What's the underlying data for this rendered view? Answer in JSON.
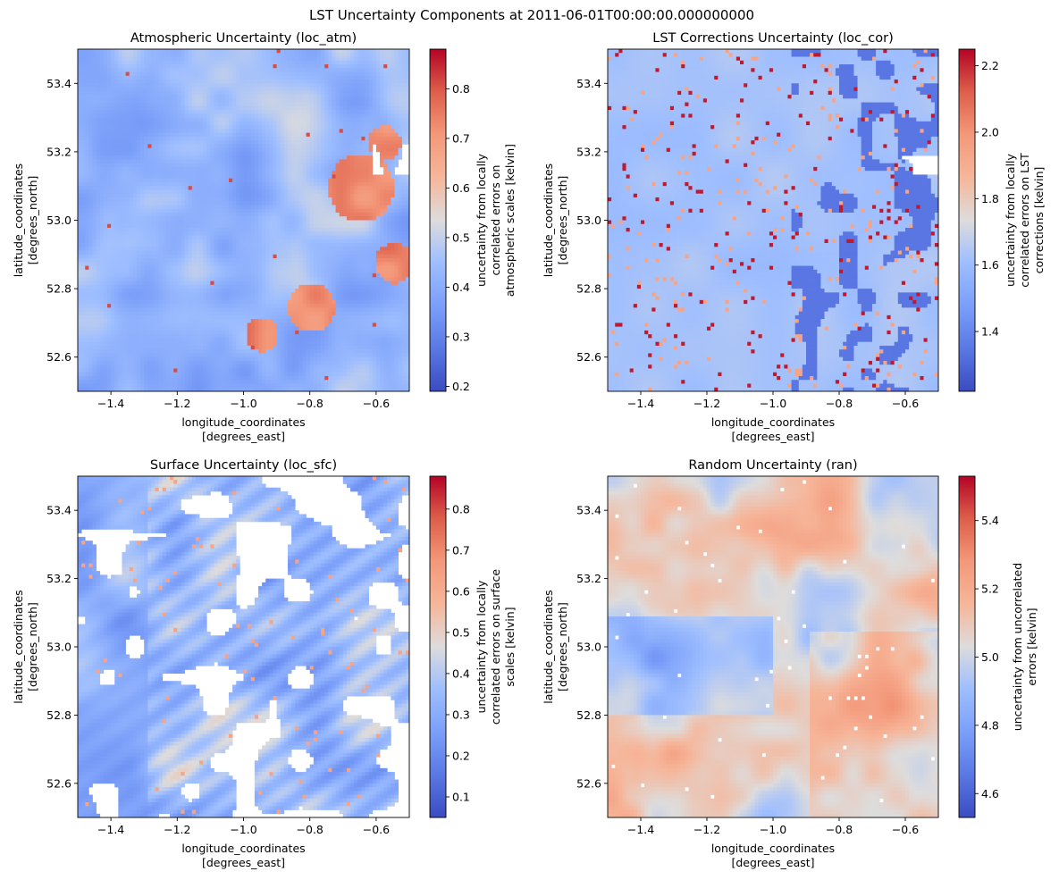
{
  "figure": {
    "suptitle": "LST Uncertainty Components at 2011-06-01T00:00:00.000000000"
  },
  "chart_data": [
    {
      "type": "heatmap",
      "title": "Atmospheric Uncertainty (loc_atm)",
      "xlabel": [
        "longitude_coordinates",
        "[degrees_east]"
      ],
      "ylabel": [
        "latitude_coordinates",
        "[degrees_north]"
      ],
      "xlim": [
        -1.5,
        -0.5
      ],
      "ylim": [
        52.5,
        53.5
      ],
      "xticks": [
        -1.4,
        -1.2,
        -1.0,
        -0.8,
        -0.6
      ],
      "xtick_labels": [
        "−1.4",
        "−1.2",
        "−1.0",
        "−0.8",
        "−0.6"
      ],
      "yticks": [
        52.6,
        52.8,
        53.0,
        53.2,
        53.4
      ],
      "ytick_labels": [
        "52.6",
        "52.8",
        "53.0",
        "53.2",
        "53.4"
      ],
      "colormap": "coolwarm",
      "colorbar_label": [
        "uncertainty from locally",
        "correlated errors on",
        "atmospheric scales [kelvin]"
      ],
      "vmin": 0.19,
      "vmax": 0.88,
      "colorbar_ticks": [
        0.2,
        0.3,
        0.4,
        0.5,
        0.6,
        0.7,
        0.8
      ],
      "colorbar_tick_labels": [
        "0.2",
        "0.3",
        "0.4",
        "0.5",
        "0.6",
        "0.7",
        "0.8"
      ],
      "grid": false
    },
    {
      "type": "heatmap",
      "title": "LST Corrections Uncertainty (loc_cor)",
      "xlabel": [
        "longitude_coordinates",
        "[degrees_east]"
      ],
      "ylabel": [
        "latitude_coordinates",
        "[degrees_north]"
      ],
      "xlim": [
        -1.5,
        -0.5
      ],
      "ylim": [
        52.5,
        53.5
      ],
      "xticks": [
        -1.4,
        -1.2,
        -1.0,
        -0.8,
        -0.6
      ],
      "xtick_labels": [
        "−1.4",
        "−1.2",
        "−1.0",
        "−0.8",
        "−0.6"
      ],
      "yticks": [
        52.6,
        52.8,
        53.0,
        53.2,
        53.4
      ],
      "ytick_labels": [
        "52.6",
        "52.8",
        "53.0",
        "53.2",
        "53.4"
      ],
      "colormap": "coolwarm",
      "colorbar_label": [
        "uncertainty from locally",
        "correlated errors on LST",
        "corrections [kelvin]"
      ],
      "vmin": 1.22,
      "vmax": 2.25,
      "colorbar_ticks": [
        1.4,
        1.6,
        1.8,
        2.0,
        2.2
      ],
      "colorbar_tick_labels": [
        "1.4",
        "1.6",
        "1.8",
        "2.0",
        "2.2"
      ],
      "grid": false
    },
    {
      "type": "heatmap",
      "title": "Surface Uncertainty (loc_sfc)",
      "xlabel": [
        "longitude_coordinates",
        "[degrees_east]"
      ],
      "ylabel": [
        "latitude_coordinates",
        "[degrees_north]"
      ],
      "xlim": [
        -1.5,
        -0.5
      ],
      "ylim": [
        52.5,
        53.5
      ],
      "xticks": [
        -1.4,
        -1.2,
        -1.0,
        -0.8,
        -0.6
      ],
      "xtick_labels": [
        "−1.4",
        "−1.2",
        "−1.0",
        "−0.8",
        "−0.6"
      ],
      "yticks": [
        52.6,
        52.8,
        53.0,
        53.2,
        53.4
      ],
      "ytick_labels": [
        "52.6",
        "52.8",
        "53.0",
        "53.2",
        "53.4"
      ],
      "colormap": "coolwarm",
      "colorbar_label": [
        "uncertainty from locally",
        "correlated errors on surface",
        "scales [kelvin]"
      ],
      "vmin": 0.05,
      "vmax": 0.88,
      "colorbar_ticks": [
        0.1,
        0.2,
        0.3,
        0.4,
        0.5,
        0.6,
        0.7,
        0.8
      ],
      "colorbar_tick_labels": [
        "0.1",
        "0.2",
        "0.3",
        "0.4",
        "0.5",
        "0.6",
        "0.7",
        "0.8"
      ],
      "grid": false
    },
    {
      "type": "heatmap",
      "title": "Random Uncertainty (ran)",
      "xlabel": [
        "longitude_coordinates",
        "[degrees_east]"
      ],
      "ylabel": [
        "latitude_coordinates",
        "[degrees_north]"
      ],
      "xlim": [
        -1.5,
        -0.5
      ],
      "ylim": [
        52.5,
        53.5
      ],
      "xticks": [
        -1.4,
        -1.2,
        -1.0,
        -0.8,
        -0.6
      ],
      "xtick_labels": [
        "−1.4",
        "−1.2",
        "−1.0",
        "−0.8",
        "−0.6"
      ],
      "yticks": [
        52.6,
        52.8,
        53.0,
        53.2,
        53.4
      ],
      "ytick_labels": [
        "52.6",
        "52.8",
        "53.0",
        "53.2",
        "53.4"
      ],
      "colormap": "coolwarm",
      "colorbar_label": [
        "uncertainty from uncorrelated",
        "errors [kelvin]"
      ],
      "vmin": 4.53,
      "vmax": 5.53,
      "colorbar_ticks": [
        4.6,
        4.8,
        5.0,
        5.2,
        5.4
      ],
      "colorbar_tick_labels": [
        "4.6",
        "4.8",
        "5.0",
        "5.2",
        "5.4"
      ],
      "grid": false
    }
  ]
}
